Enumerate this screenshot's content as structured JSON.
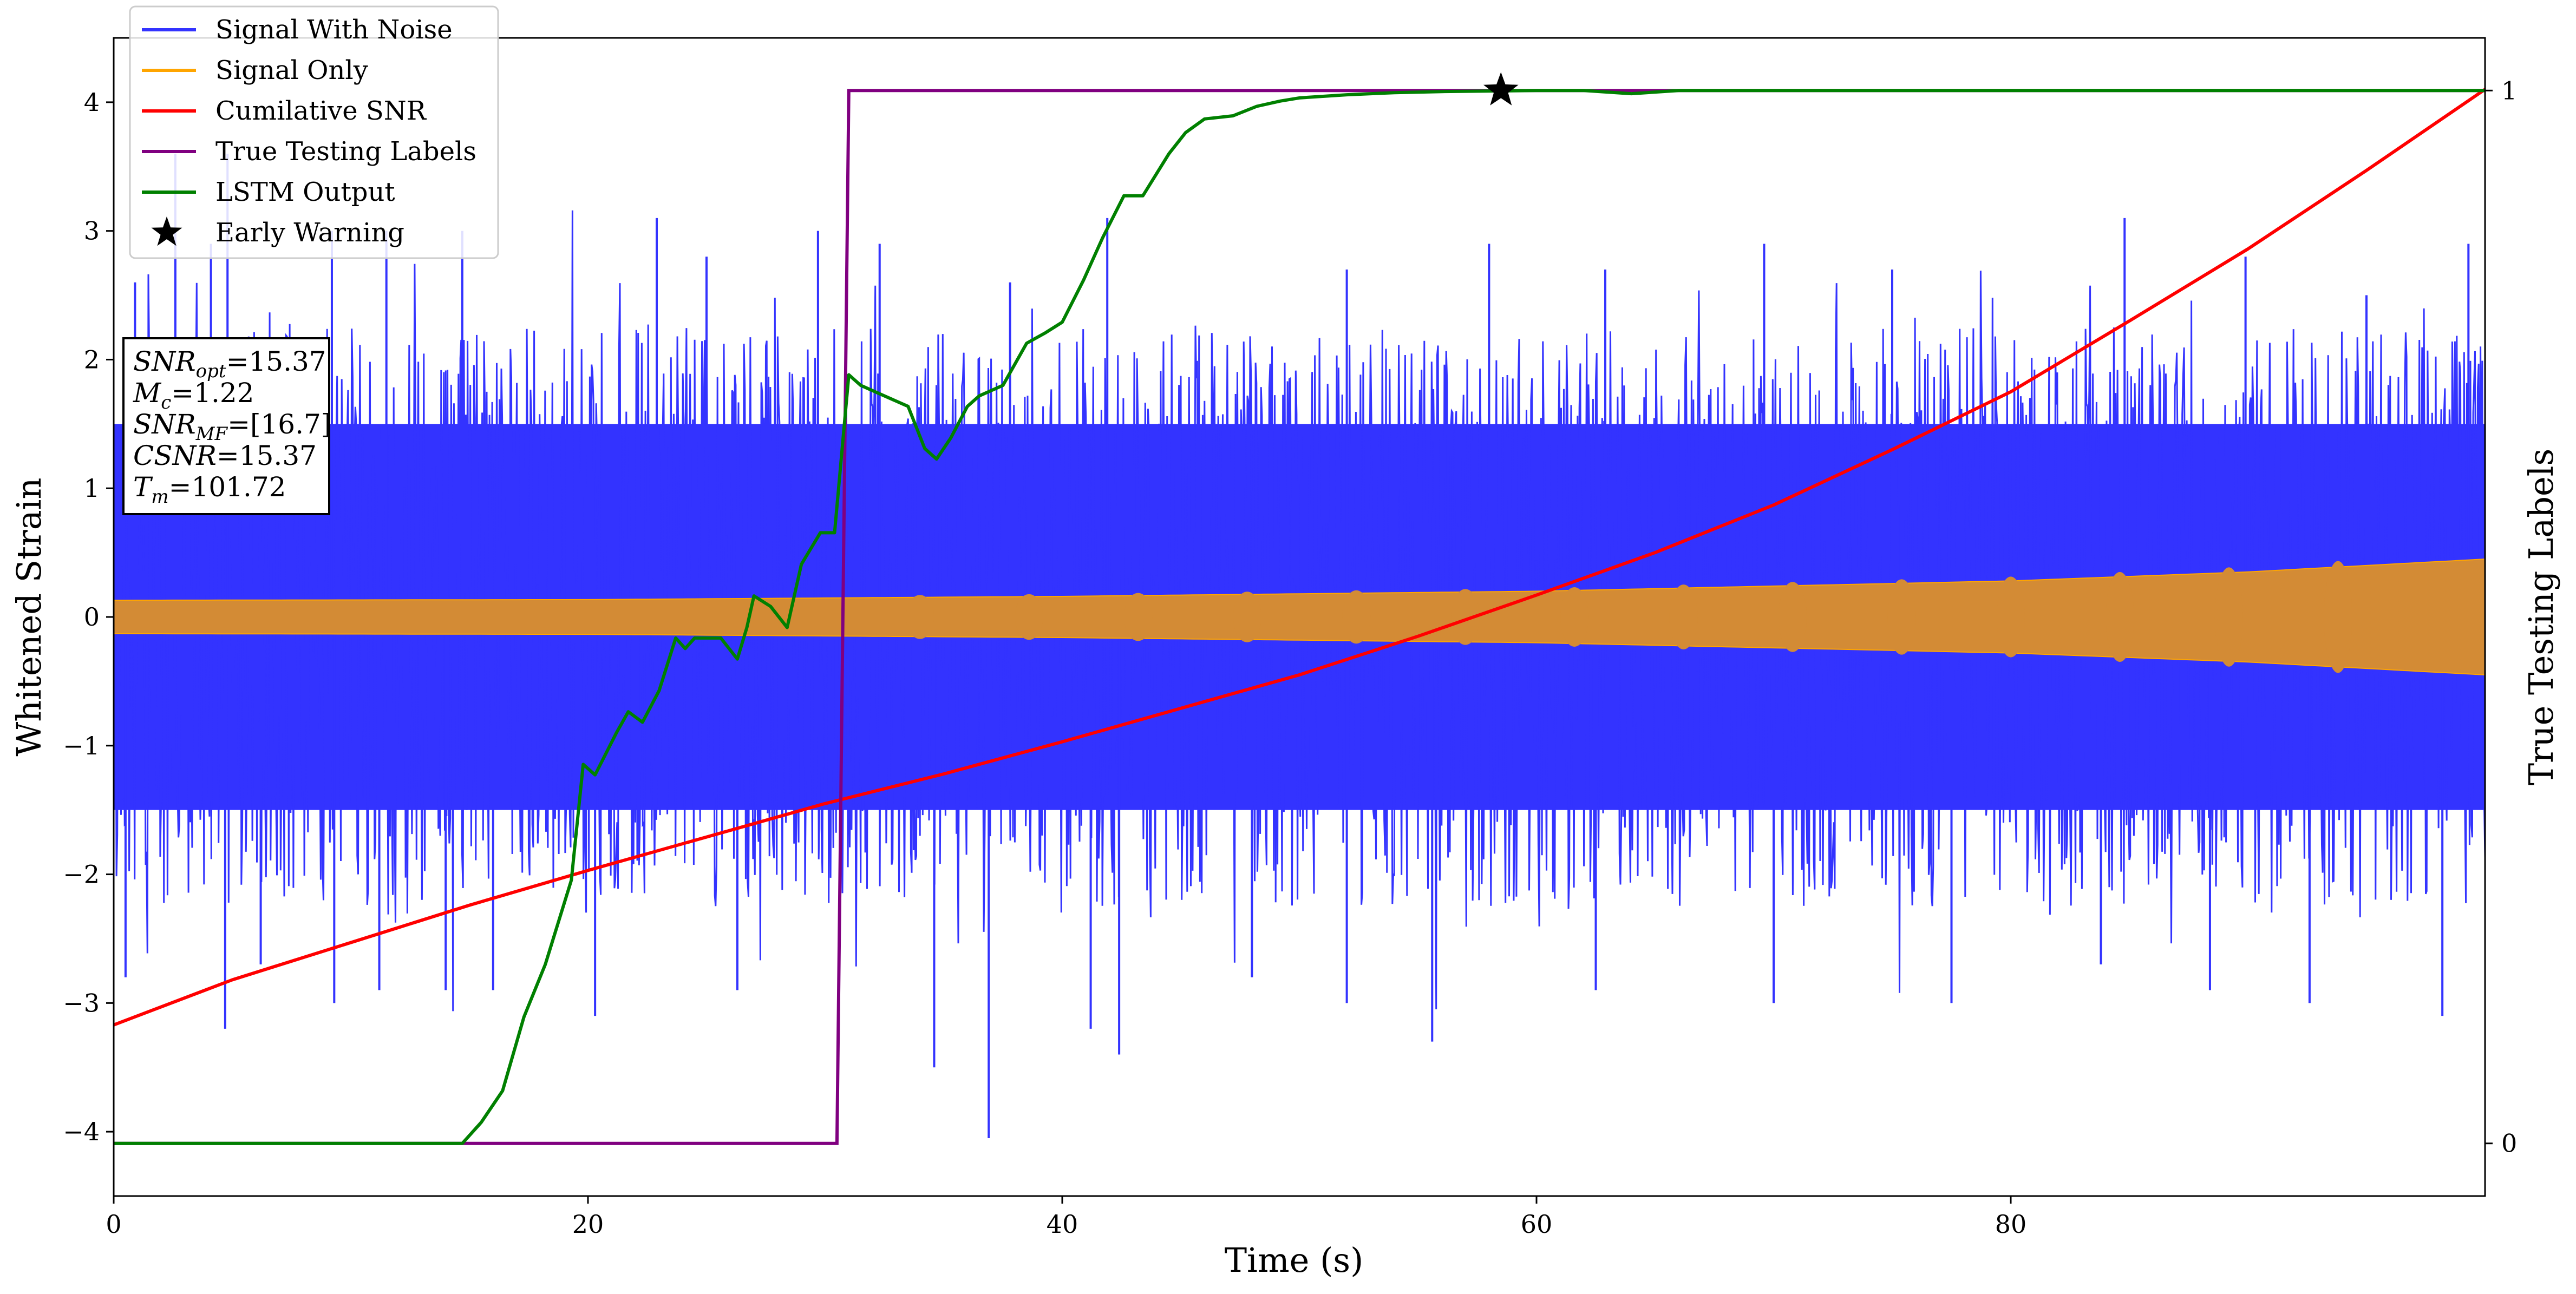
{
  "chart_data": {
    "type": "line",
    "xlabel": "Time (s)",
    "ylabel": "Whitened Strain",
    "ylabel_right": "True Testing Labels",
    "xlim": [
      0,
      100
    ],
    "ylim": [
      -4.5,
      4.5
    ],
    "ylim_right": [
      -0.05,
      1.05
    ],
    "x_ticks": [
      0,
      20,
      40,
      60,
      80
    ],
    "x_tick_labels": [
      "0",
      "20",
      "40",
      "60",
      "80"
    ],
    "y_ticks": [
      -4,
      -3,
      -2,
      -1,
      0,
      1,
      2,
      3,
      4
    ],
    "y_tick_labels": [
      "−4",
      "−3",
      "−2",
      "−1",
      "0",
      "1",
      "2",
      "3",
      "4"
    ],
    "y_right_ticks": [
      0,
      1
    ],
    "y_right_tick_labels": [
      "0",
      "1"
    ],
    "grid": false,
    "legend_position": "top-left",
    "colors": {
      "signal_with_noise": "#3333ff",
      "signal_only": "#ffa500",
      "signal_overlap": "#d38b35",
      "cumulative_snr": "#ff0000",
      "true_labels": "#800080",
      "lstm_output": "#008000",
      "early_warning": "#000000"
    },
    "series": [
      {
        "name": "Signal With Noise",
        "kind": "noise-band",
        "inner_envelope": [
          [
            0,
            0.13
          ],
          [
            100,
            0.45
          ]
        ],
        "typical_range": [
          -1.5,
          1.5
        ],
        "peaks": [
          [
            0.9,
            2.6
          ],
          [
            2.6,
            3.6
          ],
          [
            4.1,
            2.9
          ],
          [
            4.8,
            3.6
          ],
          [
            9.2,
            3.0
          ],
          [
            11.5,
            3.0
          ],
          [
            14.7,
            3.0
          ],
          [
            22.9,
            3.1
          ],
          [
            25.0,
            2.8
          ],
          [
            29.7,
            3.0
          ],
          [
            32.3,
            2.9
          ],
          [
            37.8,
            2.6
          ],
          [
            41.9,
            3.1
          ],
          [
            52.0,
            2.7
          ],
          [
            58.0,
            2.9
          ],
          [
            62.9,
            2.7
          ],
          [
            69.6,
            2.9
          ],
          [
            75.0,
            2.7
          ],
          [
            84.8,
            3.1
          ],
          [
            89.9,
            2.8
          ],
          [
            95.0,
            2.5
          ],
          [
            99.3,
            2.9
          ]
        ],
        "troughs": [
          [
            0.5,
            -2.8
          ],
          [
            4.7,
            -3.2
          ],
          [
            6.2,
            -2.7
          ],
          [
            9.3,
            -3.0
          ],
          [
            11.2,
            -2.9
          ],
          [
            14.0,
            -2.9
          ],
          [
            16.0,
            -2.9
          ],
          [
            20.3,
            -3.1
          ],
          [
            26.3,
            -2.9
          ],
          [
            34.6,
            -3.5
          ],
          [
            36.9,
            -4.05
          ],
          [
            41.2,
            -3.2
          ],
          [
            42.4,
            -3.4
          ],
          [
            48.0,
            -2.8
          ],
          [
            52.0,
            -3.0
          ],
          [
            55.6,
            -3.3
          ],
          [
            62.5,
            -2.9
          ],
          [
            70.0,
            -3.0
          ],
          [
            77.5,
            -3.0
          ],
          [
            83.8,
            -2.7
          ],
          [
            88.4,
            -2.9
          ],
          [
            92.6,
            -3.0
          ],
          [
            98.2,
            -3.1
          ]
        ]
      },
      {
        "name": "Signal Only",
        "kind": "envelope",
        "amplitude": [
          [
            0,
            0.13
          ],
          [
            20,
            0.135
          ],
          [
            40,
            0.16
          ],
          [
            60,
            0.2
          ],
          [
            80,
            0.28
          ],
          [
            90,
            0.35
          ],
          [
            100,
            0.45
          ]
        ]
      },
      {
        "name": "Cumilative SNR",
        "kind": "line",
        "points": [
          [
            0,
            -3.17
          ],
          [
            5,
            -2.82
          ],
          [
            10,
            -2.53
          ],
          [
            15,
            -2.24
          ],
          [
            20,
            -1.97
          ],
          [
            25,
            -1.71
          ],
          [
            30,
            -1.45
          ],
          [
            35,
            -1.22
          ],
          [
            40,
            -0.97
          ],
          [
            45,
            -0.71
          ],
          [
            50,
            -0.45
          ],
          [
            55,
            -0.15
          ],
          [
            60,
            0.17
          ],
          [
            65,
            0.5
          ],
          [
            70,
            0.87
          ],
          [
            75,
            1.3
          ],
          [
            80,
            1.75
          ],
          [
            85,
            2.3
          ],
          [
            90,
            2.86
          ],
          [
            95,
            3.47
          ],
          [
            100,
            4.1
          ]
        ]
      },
      {
        "name": "True Testing Labels",
        "kind": "step",
        "axis": "right",
        "points": [
          [
            0,
            0
          ],
          [
            30.5,
            0
          ],
          [
            31.0,
            1
          ],
          [
            100,
            1
          ]
        ]
      },
      {
        "name": "LSTM Output",
        "kind": "line",
        "axis": "right",
        "points": [
          [
            0,
            0
          ],
          [
            14.7,
            0
          ],
          [
            15.5,
            0.02
          ],
          [
            16.4,
            0.05
          ],
          [
            17.3,
            0.12
          ],
          [
            18.2,
            0.17
          ],
          [
            19.3,
            0.25
          ],
          [
            19.8,
            0.36
          ],
          [
            20.3,
            0.35
          ],
          [
            21.2,
            0.39
          ],
          [
            21.7,
            0.41
          ],
          [
            22.3,
            0.4
          ],
          [
            23.0,
            0.43
          ],
          [
            23.7,
            0.48
          ],
          [
            24.1,
            0.47
          ],
          [
            24.5,
            0.48
          ],
          [
            25.6,
            0.48
          ],
          [
            26.3,
            0.46
          ],
          [
            26.7,
            0.49
          ],
          [
            27.0,
            0.52
          ],
          [
            27.7,
            0.51
          ],
          [
            28.4,
            0.49
          ],
          [
            29.0,
            0.55
          ],
          [
            29.8,
            0.58
          ],
          [
            30.4,
            0.58
          ],
          [
            31.0,
            0.73
          ],
          [
            31.5,
            0.72
          ],
          [
            32.5,
            0.71
          ],
          [
            33.5,
            0.7
          ],
          [
            34.2,
            0.66
          ],
          [
            34.7,
            0.65
          ],
          [
            35.3,
            0.67
          ],
          [
            36.0,
            0.7
          ],
          [
            36.5,
            0.71
          ],
          [
            37.5,
            0.72
          ],
          [
            38.5,
            0.76
          ],
          [
            39.3,
            0.77
          ],
          [
            40.0,
            0.78
          ],
          [
            40.9,
            0.82
          ],
          [
            41.7,
            0.86
          ],
          [
            42.6,
            0.9
          ],
          [
            43.4,
            0.9
          ],
          [
            44.5,
            0.94
          ],
          [
            45.2,
            0.96
          ],
          [
            46.0,
            0.973
          ],
          [
            47.2,
            0.976
          ],
          [
            48.2,
            0.985
          ],
          [
            49.2,
            0.99
          ],
          [
            50.0,
            0.993
          ],
          [
            52.0,
            0.996
          ],
          [
            54.0,
            0.998
          ],
          [
            56.0,
            0.999
          ],
          [
            60.0,
            1.0
          ],
          [
            62.0,
            1.0
          ],
          [
            64.0,
            0.997
          ],
          [
            66.0,
            1.0
          ],
          [
            100,
            1.0
          ]
        ]
      },
      {
        "name": "Early Warning",
        "kind": "marker",
        "axis": "right",
        "marker": "star",
        "x": 58.5,
        "y": 1.0
      }
    ],
    "legend": [
      {
        "label": "Signal With Noise",
        "swatch": "line",
        "color": "#3333ff"
      },
      {
        "label": "Signal Only",
        "swatch": "line",
        "color": "#ffa500"
      },
      {
        "label": "Cumilative SNR",
        "swatch": "line",
        "color": "#ff0000"
      },
      {
        "label": "True Testing Labels",
        "swatch": "line",
        "color": "#800080"
      },
      {
        "label": "LSTM Output",
        "swatch": "line",
        "color": "#008000"
      },
      {
        "label": "Early Warning",
        "swatch": "star",
        "color": "#000000"
      }
    ],
    "annotation": {
      "lines": [
        {
          "var": "SNR",
          "sub": "opt",
          "value": "=15.37"
        },
        {
          "var": "M",
          "sub": "c",
          "value": "=1.22"
        },
        {
          "var": "SNR",
          "sub": "MF",
          "value": "=[16.7]"
        },
        {
          "var": "CSNR",
          "sub": "",
          "value": "=15.37"
        },
        {
          "var": "T",
          "sub": "m",
          "value": "=101.72"
        }
      ]
    }
  }
}
